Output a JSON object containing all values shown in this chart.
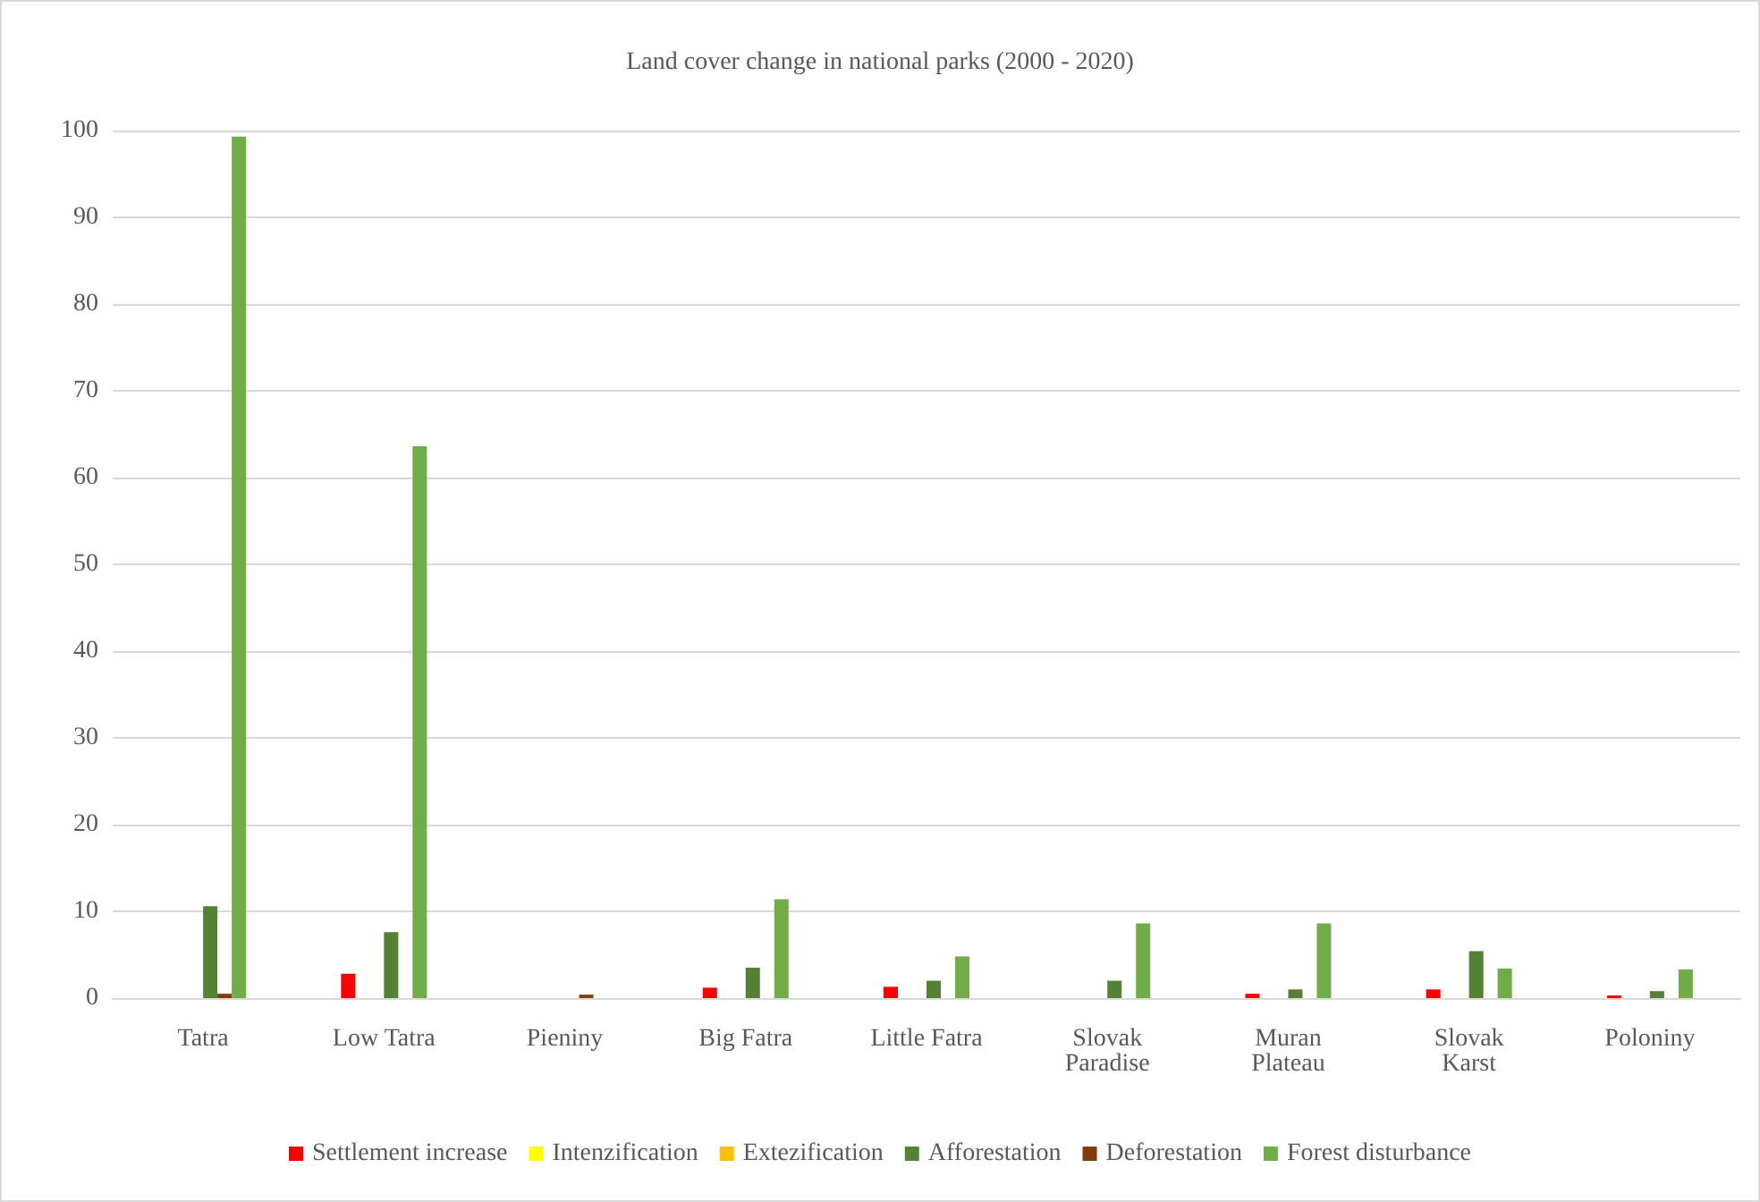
{
  "chart_data": {
    "type": "bar",
    "title": "Land cover change in national parks (2000 - 2020)",
    "categories": [
      "Tatra",
      "Low Tatra",
      "Pieniny",
      "Big Fatra",
      "Little Fatra",
      "Slovak\nParadise",
      "Muran\nPlateau",
      "Slovak\nKarst",
      "Poloniny"
    ],
    "series": [
      {
        "name": "Settlement increase",
        "color": "#ff0000",
        "values": [
          0,
          2.8,
          0,
          1.2,
          1.3,
          0,
          0.5,
          1.0,
          0.3
        ]
      },
      {
        "name": "Intenzification",
        "color": "#ffff00",
        "values": [
          0,
          0,
          0,
          0,
          0,
          0,
          0,
          0,
          0
        ]
      },
      {
        "name": "Extezification",
        "color": "#ffc000",
        "values": [
          0,
          0,
          0,
          0,
          0,
          0,
          0,
          0,
          0
        ]
      },
      {
        "name": "Afforestation",
        "color": "#548235",
        "values": [
          10.6,
          7.6,
          0,
          3.5,
          2.0,
          2.0,
          1.0,
          5.4,
          0.8
        ]
      },
      {
        "name": "Deforestation",
        "color": "#843c0c",
        "values": [
          0.5,
          0,
          0.4,
          0,
          0,
          0,
          0,
          0,
          0
        ]
      },
      {
        "name": "Forest disturbance",
        "color": "#70ad47",
        "values": [
          99.3,
          63.6,
          0,
          11.4,
          4.8,
          8.6,
          8.6,
          3.4,
          3.3
        ]
      }
    ],
    "ylim": [
      0,
      100
    ],
    "yticks": [
      0,
      10,
      20,
      30,
      40,
      50,
      60,
      70,
      80,
      90,
      100
    ],
    "grid": "y",
    "legend": "bottom"
  }
}
